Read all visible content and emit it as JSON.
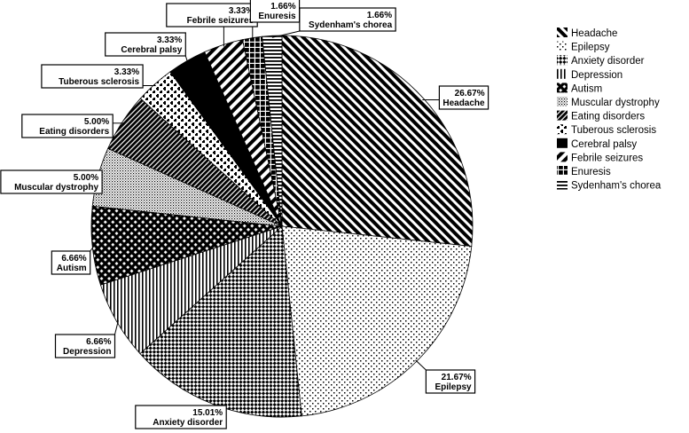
{
  "chart_data": {
    "type": "pie",
    "title": "",
    "start_angle_deg": 0,
    "direction": "clockwise",
    "legend_position": "right",
    "slices": [
      {
        "name": "Headache",
        "value": 26.67,
        "label": "26.67%",
        "pattern": "diag-ne-wide"
      },
      {
        "name": "Epilepsy",
        "value": 21.67,
        "label": "21.67%",
        "pattern": "dots"
      },
      {
        "name": "Anxiety disorder",
        "value": 15.01,
        "label": "15.01%",
        "pattern": "checker-diag"
      },
      {
        "name": "Depression",
        "value": 6.66,
        "label": "6.66%",
        "pattern": "vlines"
      },
      {
        "name": "Autism",
        "value": 6.66,
        "label": "6.66%",
        "pattern": "crosshatch"
      },
      {
        "name": "Muscular dystrophy",
        "value": 5.0,
        "label": "5.00%",
        "pattern": "fine-dots"
      },
      {
        "name": "Eating disorders",
        "value": 5.0,
        "label": "5.00%",
        "pattern": "diag-nw-dense"
      },
      {
        "name": "Tuberous sclerosis",
        "value": 3.33,
        "label": "3.33%",
        "pattern": "plus-grid"
      },
      {
        "name": "Cerebral palsy",
        "value": 3.33,
        "label": "3.33%",
        "pattern": "solid"
      },
      {
        "name": "Febrile seizures",
        "value": 3.33,
        "label": "3.33%",
        "pattern": "diag-nw-wide"
      },
      {
        "name": "Enuresis",
        "value": 1.66,
        "label": "1.66%",
        "pattern": "blocks"
      },
      {
        "name": "Sydenham's chorea",
        "value": 1.66,
        "label": "1.66%",
        "pattern": "hlines"
      }
    ]
  }
}
